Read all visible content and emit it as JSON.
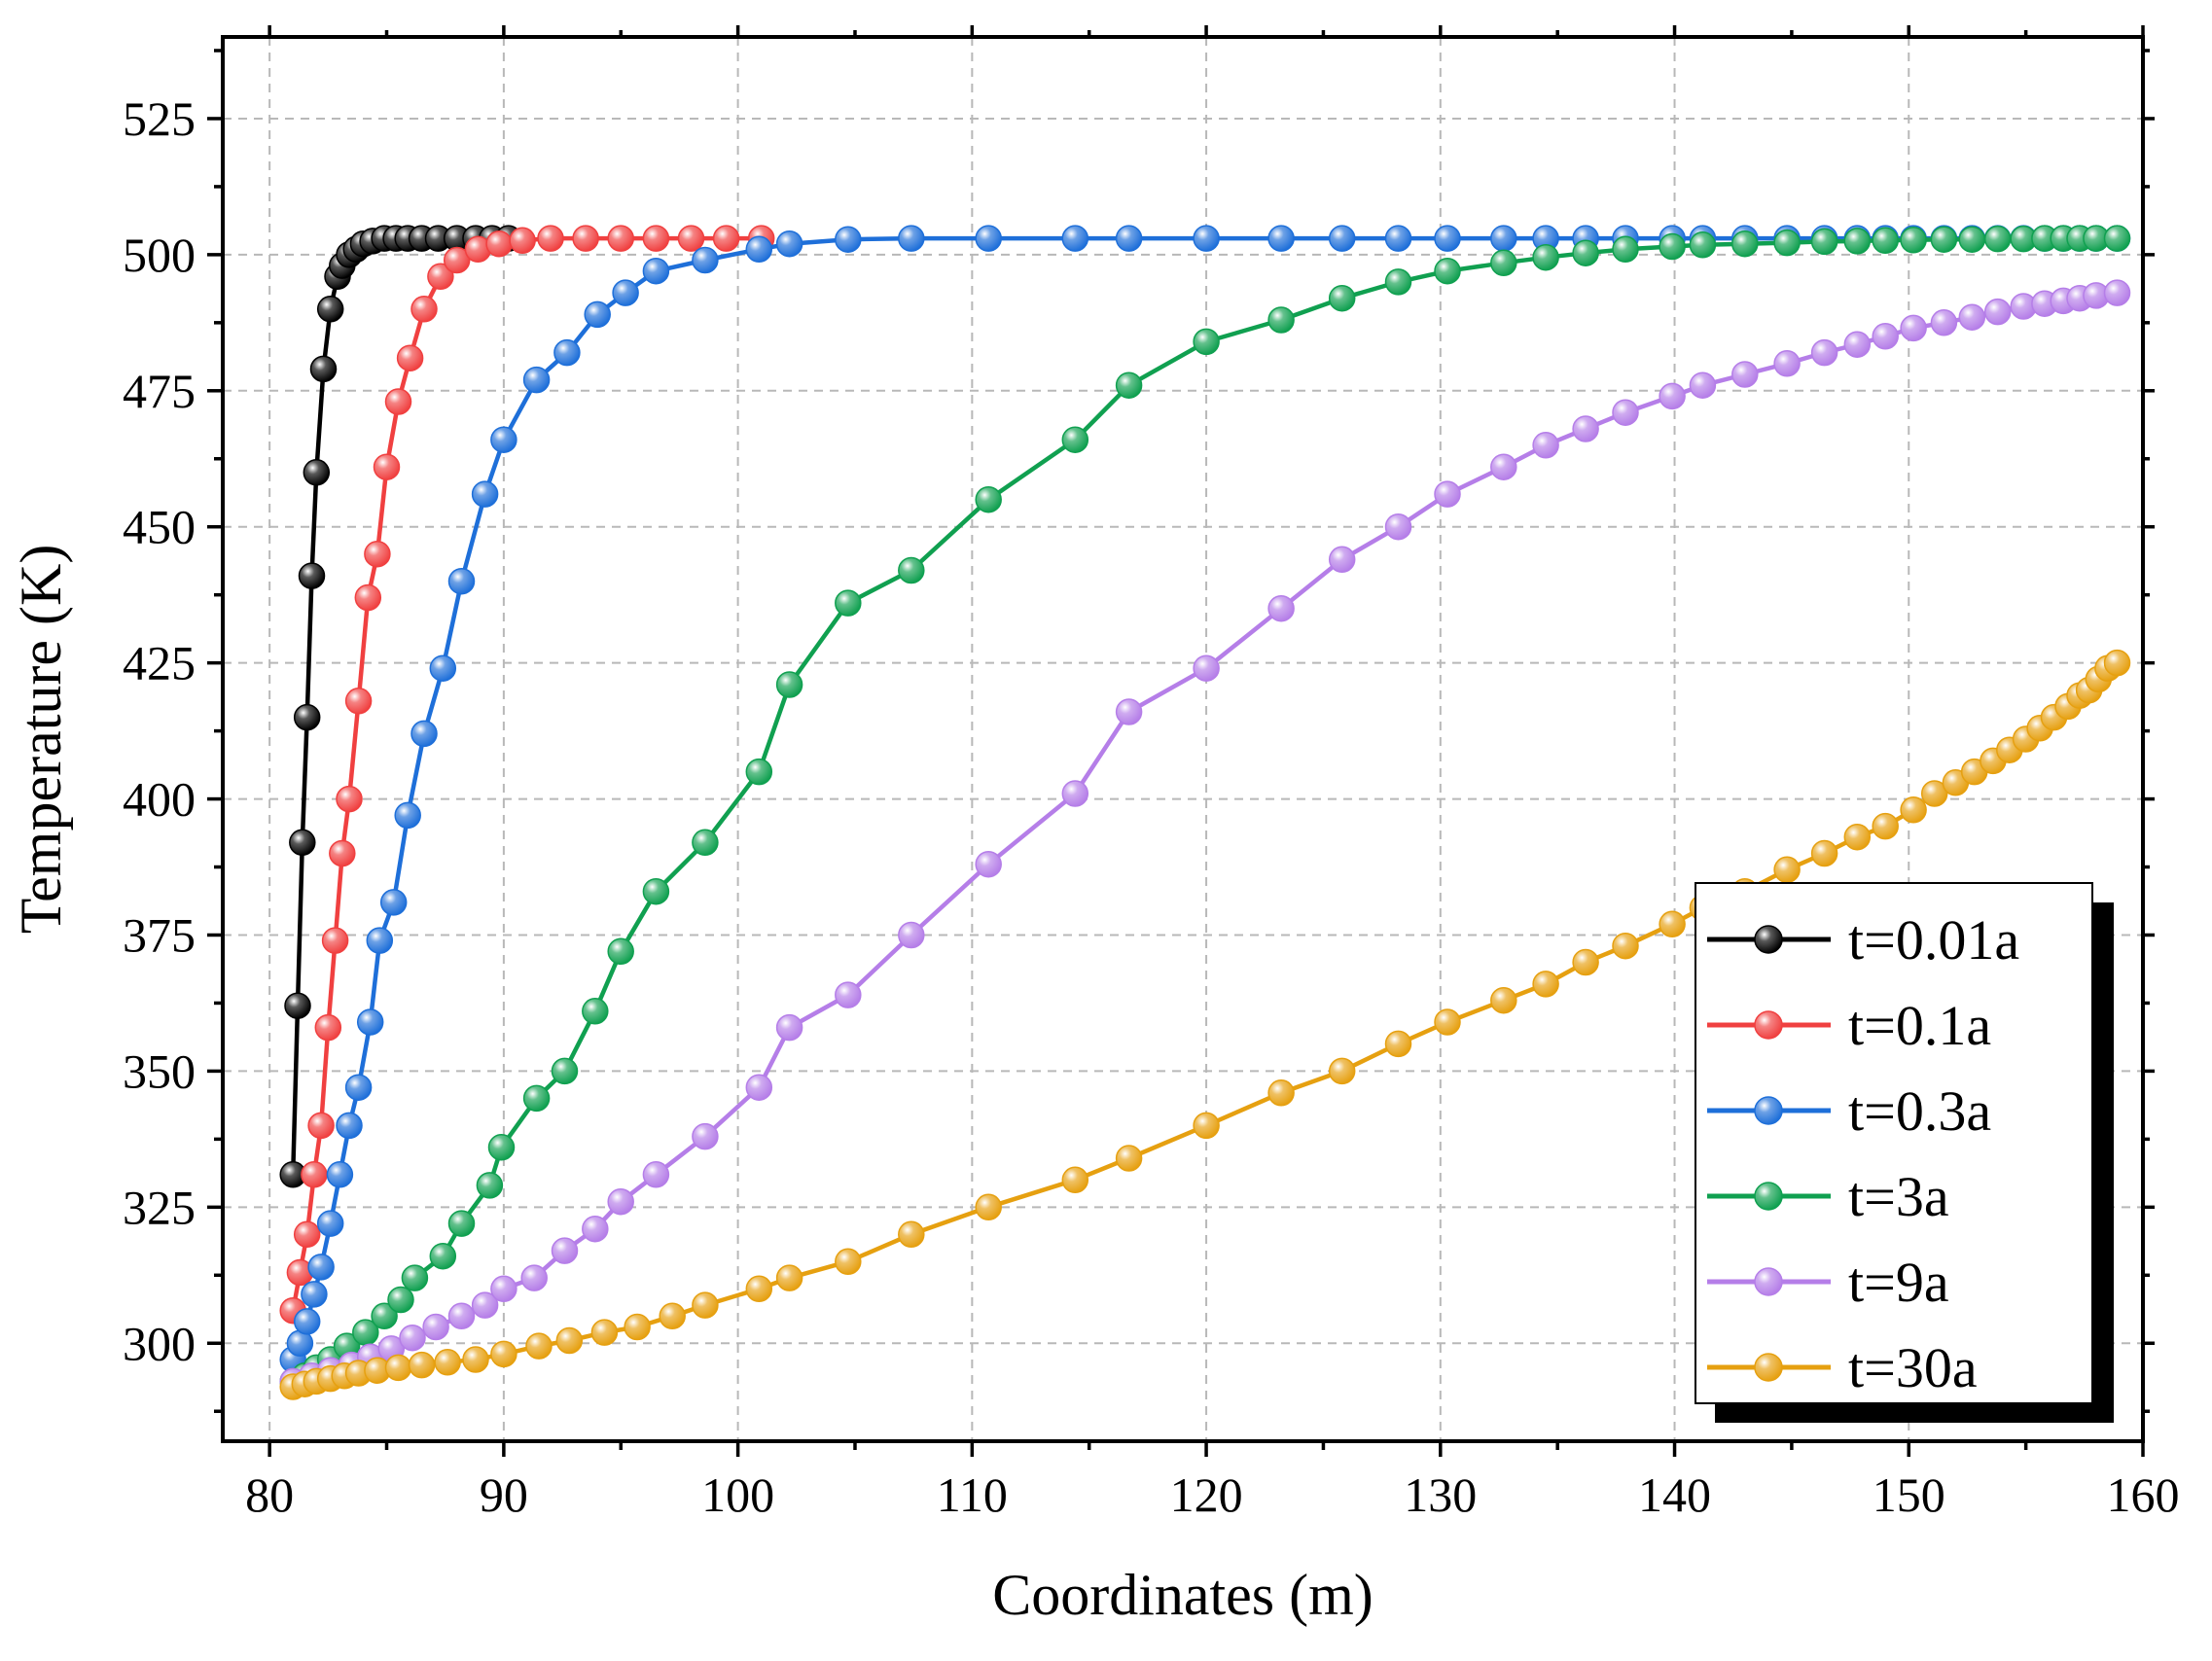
{
  "chart_data": {
    "type": "line",
    "xlabel": "Coordinates (m)",
    "ylabel": "Temperature (K)",
    "xlim": [
      78,
      160
    ],
    "ylim": [
      282,
      540
    ],
    "xticks": [
      80,
      90,
      100,
      110,
      120,
      130,
      140,
      150,
      160
    ],
    "yticks": [
      300,
      325,
      350,
      375,
      400,
      425,
      450,
      475,
      500,
      525
    ],
    "grid": true,
    "legend_position": "lower-right",
    "series": [
      {
        "name": "t=0.01a",
        "color": "#000000",
        "x": [
          81.0,
          81.2,
          81.4,
          81.6,
          81.8,
          82.0,
          82.3,
          82.6,
          82.9,
          83.1,
          83.4,
          83.7,
          84.0,
          84.4,
          84.9,
          85.4,
          85.9,
          86.5,
          87.2,
          88.0,
          88.8,
          89.5,
          90.2
        ],
        "y": [
          331,
          362,
          392,
          415,
          441,
          460,
          479,
          490,
          496,
          498,
          500,
          501,
          502,
          502.5,
          503,
          503,
          503,
          503,
          503,
          503,
          503,
          503,
          503
        ]
      },
      {
        "name": "t=0.1a",
        "color": "#f04040",
        "x": [
          81.0,
          81.3,
          81.6,
          81.9,
          82.2,
          82.5,
          82.8,
          83.1,
          83.4,
          83.8,
          84.2,
          84.6,
          85.0,
          85.5,
          86.0,
          86.6,
          87.3,
          88.0,
          88.9,
          89.8,
          90.8,
          92.0,
          93.5,
          95.0,
          96.5,
          98.0,
          99.5,
          101.0
        ],
        "y": [
          306,
          313,
          320,
          331,
          340,
          358,
          374,
          390,
          400,
          418,
          437,
          445,
          461,
          473,
          481,
          490,
          496,
          499,
          501,
          502,
          502.6,
          503,
          503,
          503,
          503,
          503,
          503,
          503
        ]
      },
      {
        "name": "t=0.3a",
        "color": "#1e6fd9",
        "x": [
          81.0,
          81.3,
          81.6,
          81.9,
          82.2,
          82.6,
          83.0,
          83.4,
          83.8,
          84.3,
          84.7,
          85.3,
          85.9,
          86.6,
          87.4,
          88.2,
          89.2,
          90.0,
          91.4,
          92.7,
          94.0,
          95.2,
          96.5,
          98.6,
          100.9,
          102.2,
          104.7,
          107.4,
          110.7,
          114.4,
          116.7,
          120.0,
          123.2,
          125.8,
          128.2,
          130.3,
          132.7,
          134.5,
          136.2,
          137.9,
          139.9,
          141.2,
          143.0,
          144.8,
          146.4,
          147.8,
          149.0,
          150.2,
          151.5,
          152.7,
          153.8,
          154.9,
          155.8,
          156.6,
          157.3,
          158.0,
          158.9
        ],
        "y": [
          297,
          300,
          304,
          309,
          314,
          322,
          331,
          340,
          347,
          359,
          374,
          381,
          397,
          412,
          424,
          440,
          456,
          466,
          477,
          482,
          489,
          493,
          497,
          499,
          501,
          502,
          502.8,
          503,
          503,
          503,
          503,
          503,
          503,
          503,
          503,
          503,
          503,
          503,
          503,
          503,
          503,
          503,
          503,
          503,
          503,
          503,
          503,
          503,
          503,
          503,
          503,
          503,
          503,
          503,
          503,
          503,
          503
        ]
      },
      {
        "name": "t=3a",
        "color": "#10a050",
        "x": [
          81.0,
          81.5,
          82.0,
          82.6,
          83.3,
          84.1,
          84.9,
          85.6,
          86.2,
          87.4,
          88.2,
          89.4,
          89.9,
          91.4,
          92.6,
          93.9,
          95.0,
          96.5,
          98.6,
          100.9,
          102.2,
          104.7,
          107.4,
          110.7,
          114.4,
          116.7,
          120.0,
          123.2,
          125.8,
          128.2,
          130.3,
          132.7,
          134.5,
          136.2,
          137.9,
          139.9,
          141.2,
          143.0,
          144.8,
          146.4,
          147.8,
          149.0,
          150.2,
          151.5,
          152.7,
          153.8,
          154.9,
          155.8,
          156.6,
          157.3,
          158.0,
          158.9
        ],
        "y": [
          293,
          294,
          295.5,
          297,
          299.5,
          302,
          305,
          308,
          312,
          316,
          322,
          329,
          336,
          345,
          350,
          361,
          372,
          383,
          392,
          405,
          421,
          436,
          442,
          455,
          466,
          476,
          484,
          488,
          492,
          495,
          497,
          498.5,
          499.5,
          500.3,
          501,
          501.5,
          501.8,
          502,
          502.2,
          502.4,
          502.5,
          502.6,
          502.7,
          502.8,
          502.8,
          502.9,
          502.9,
          503,
          503,
          503,
          503,
          503
        ]
      },
      {
        "name": "t=9a",
        "color": "#b57ee8",
        "x": [
          81.0,
          81.8,
          82.6,
          83.5,
          84.3,
          85.2,
          86.1,
          87.1,
          88.2,
          89.2,
          90.0,
          91.3,
          92.6,
          93.9,
          95.0,
          96.5,
          98.6,
          100.9,
          102.2,
          104.7,
          107.4,
          110.7,
          114.4,
          116.7,
          120.0,
          123.2,
          125.8,
          128.2,
          130.3,
          132.7,
          134.5,
          136.2,
          137.9,
          139.9,
          141.2,
          143.0,
          144.8,
          146.4,
          147.8,
          149.0,
          150.2,
          151.5,
          152.7,
          153.8,
          154.9,
          155.8,
          156.6,
          157.3,
          158.0,
          158.9
        ],
        "y": [
          293,
          294,
          295,
          296,
          297.5,
          299,
          301,
          303,
          305,
          307,
          310,
          312,
          317,
          321,
          326,
          331,
          338,
          347,
          358,
          364,
          375,
          388,
          401,
          416,
          424,
          435,
          444,
          450,
          456,
          461,
          465,
          468,
          471,
          474,
          476,
          478,
          480,
          482,
          483.5,
          485,
          486.5,
          487.5,
          488.5,
          489.5,
          490.5,
          491,
          491.5,
          492,
          492.5,
          493
        ]
      },
      {
        "name": "t=30a",
        "color": "#e6a010",
        "x": [
          81.0,
          81.5,
          82.0,
          82.6,
          83.2,
          83.8,
          84.6,
          85.5,
          86.5,
          87.6,
          88.8,
          90.0,
          91.5,
          92.8,
          94.3,
          95.7,
          97.2,
          98.6,
          100.9,
          102.2,
          104.7,
          107.4,
          110.7,
          114.4,
          116.7,
          120.0,
          123.2,
          125.8,
          128.2,
          130.3,
          132.7,
          134.5,
          136.2,
          137.9,
          139.9,
          141.2,
          143.0,
          144.8,
          146.4,
          147.8,
          149.0,
          150.2,
          151.1,
          152.0,
          152.8,
          153.6,
          154.3,
          155.0,
          155.6,
          156.2,
          156.8,
          157.3,
          157.7,
          158.1,
          158.5,
          158.9
        ],
        "y": [
          292,
          292.5,
          293,
          293.5,
          294,
          294.5,
          295,
          295.5,
          296,
          296.5,
          297,
          298,
          299.5,
          300.5,
          302,
          303,
          305,
          307,
          310,
          312,
          315,
          320,
          325,
          330,
          334,
          340,
          346,
          350,
          355,
          359,
          363,
          366,
          370,
          373,
          377,
          380,
          383,
          387,
          390,
          393,
          395,
          398,
          401,
          403,
          405,
          407,
          409,
          411,
          413,
          415,
          417,
          419,
          420,
          422,
          424,
          425
        ]
      }
    ]
  }
}
